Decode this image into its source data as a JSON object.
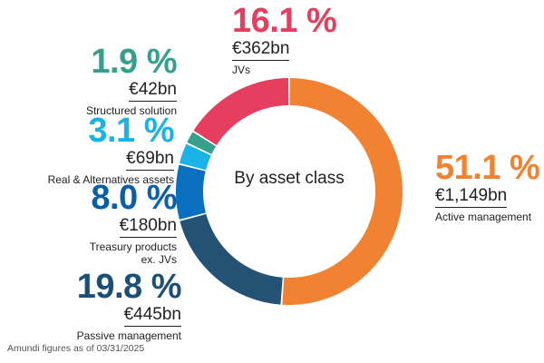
{
  "chart_data": {
    "type": "pie",
    "title": "By asset class",
    "unit": "%",
    "categories": [
      "Active management",
      "Passive management",
      "Treasury products ex. JVs",
      "Real & Alternatives assets",
      "Structured solution",
      "JVs"
    ],
    "values": [
      51.1,
      19.8,
      8.0,
      3.1,
      1.9,
      16.1
    ],
    "labels_pct": [
      "51.1 %",
      "19.8 %",
      "8.0 %",
      "3.1 %",
      "1.9 %",
      "16.1 %"
    ],
    "amounts": [
      "€1,149bn",
      "€445bn",
      "€180bn",
      "€69bn",
      "€42bn",
      "€362bn"
    ],
    "colors": [
      "#F08231",
      "#235274",
      "#0B6FC0",
      "#1AB3E8",
      "#36A08E",
      "#E63E5F"
    ],
    "pct_colors": [
      "#F08231",
      "#1B4F78",
      "#0B5EA8",
      "#1AB3E8",
      "#36A08E",
      "#E63E5F"
    ]
  },
  "footnote": "Amundi figures as of 03/31/2025"
}
